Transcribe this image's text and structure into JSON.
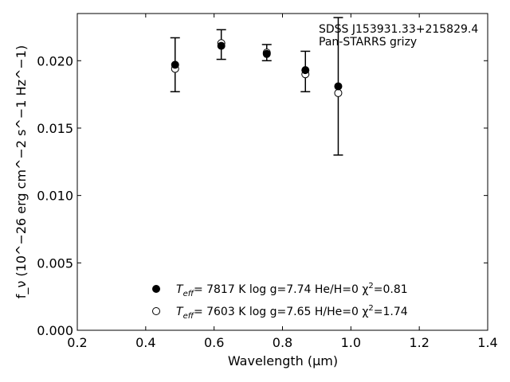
{
  "chart_data": {
    "type": "scatter",
    "annotation": [
      "SDSS J153931.33+215829.4",
      "Pan-STARRS grizy"
    ],
    "xlabel": "Wavelength (μm)",
    "ylabel": "f_ν (10^−26 erg cm^−2 s^−1 Hz^−1)",
    "xlim": [
      0.2,
      1.4
    ],
    "ylim": [
      0.0,
      0.0235
    ],
    "xticks": [
      "0.2",
      "0.4",
      "0.6",
      "0.8",
      "1.0",
      "1.2",
      "1.4"
    ],
    "yticks": [
      "0.000",
      "0.005",
      "0.010",
      "0.015",
      "0.020"
    ],
    "grid": false,
    "legend_position": "lower-center",
    "observed": {
      "x": [
        0.486,
        0.621,
        0.754,
        0.867,
        0.963
      ],
      "y": [
        0.0197,
        0.0212,
        0.0206,
        0.0192,
        0.0181
      ],
      "yerr": [
        0.002,
        0.0011,
        0.0006,
        0.0015,
        0.0051
      ]
    },
    "series": [
      {
        "marker": "filled-circle",
        "label": {
          "teff_symbol": "T",
          "teff_sub": "eff",
          "teff_value": "=  7817 K  log g=7.74  He/H=0  χ",
          "chi_sup": "2",
          "chi_value": "=0.81"
        },
        "x": [
          0.486,
          0.621,
          0.754,
          0.867,
          0.963
        ],
        "y": [
          0.0197,
          0.0211,
          0.0205,
          0.0193,
          0.0181
        ]
      },
      {
        "marker": "open-circle",
        "label": {
          "teff_symbol": "T",
          "teff_sub": "eff",
          "teff_value": "=  7603 K  log g=7.65  H/He=0  χ",
          "chi_sup": "2",
          "chi_value": "=1.74"
        },
        "x": [
          0.486,
          0.621,
          0.754,
          0.867,
          0.963
        ],
        "y": [
          0.0194,
          0.0213,
          0.0206,
          0.019,
          0.0176
        ]
      }
    ]
  }
}
